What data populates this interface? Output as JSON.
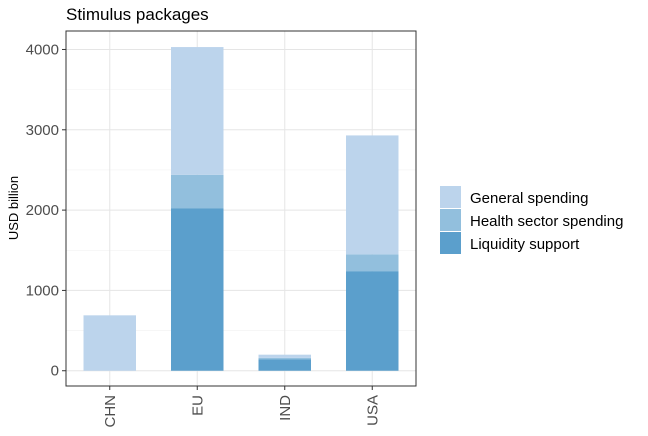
{
  "chart_data": {
    "type": "bar",
    "stacked": true,
    "title": "Stimulus packages",
    "xlabel": "",
    "ylabel": "USD billion",
    "categories": [
      "CHN",
      "EU",
      "IND",
      "USA"
    ],
    "series": [
      {
        "name": "Liquidity support",
        "values": [
          0,
          2020,
          140,
          1240
        ],
        "color": "#5b9fcc"
      },
      {
        "name": "Health sector spending",
        "values": [
          0,
          420,
          20,
          210
        ],
        "color": "#92bfdd"
      },
      {
        "name": "General spending",
        "values": [
          690,
          1590,
          40,
          1480
        ],
        "color": "#bcd4ec"
      }
    ],
    "legend_order": [
      "General spending",
      "Health sector spending",
      "Liquidity support"
    ],
    "yticks": [
      0,
      1000,
      2000,
      3000,
      4000
    ],
    "ytick_labels": [
      "0",
      "1000",
      "2000",
      "3000",
      "4000"
    ],
    "ylim": [
      -190,
      4230
    ],
    "grid": true,
    "legend_position": "right"
  }
}
